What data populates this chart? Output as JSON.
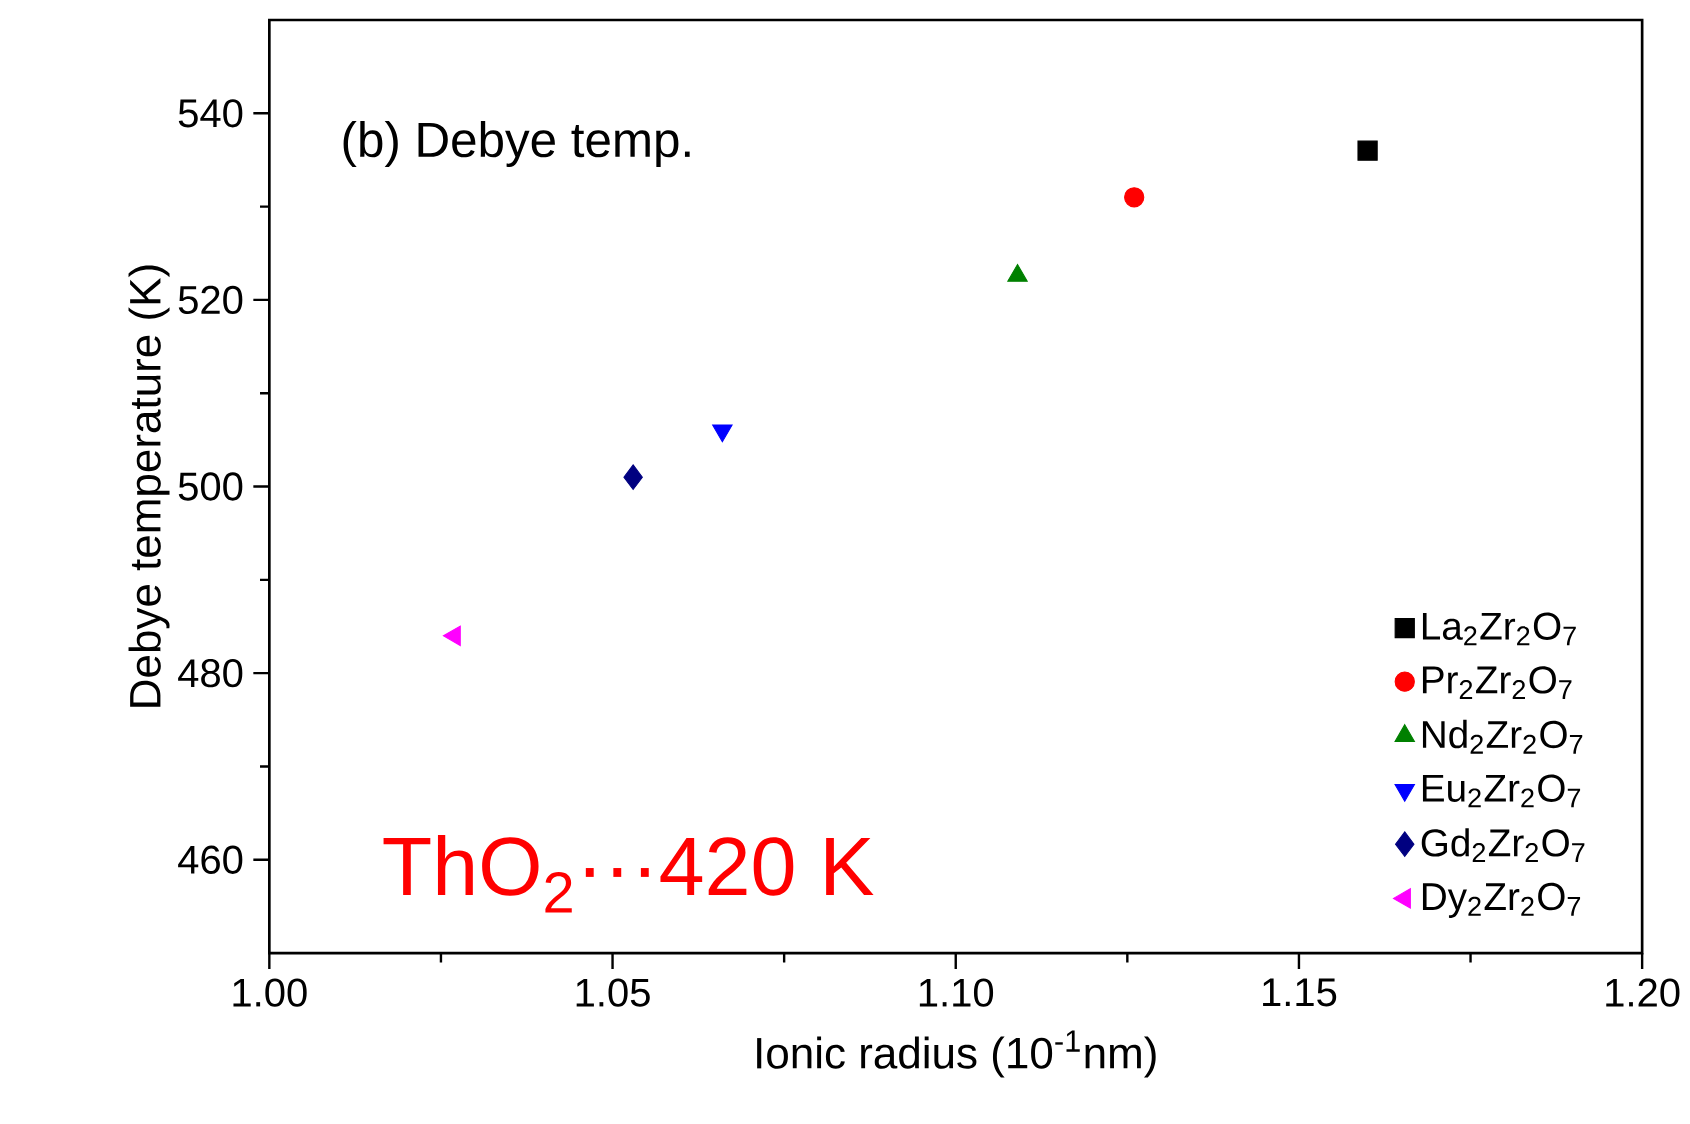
{
  "chart_data": {
    "type": "scatter",
    "title": "(b) Debye temp.",
    "xlabel": "Ionic radius (10$^{-1}$nm)",
    "ylabel": "Debye temperature (K)",
    "annotations": [
      "ThO$_{2}$···420 K"
    ],
    "xlim": [
      1.0,
      1.2
    ],
    "ylim": [
      450,
      550
    ],
    "xticks": [
      {
        "value": 1.0,
        "label": "1.00"
      },
      {
        "value": 1.05,
        "label": "1.05"
      },
      {
        "value": 1.1,
        "label": "1.10"
      },
      {
        "value": 1.15,
        "label": "1.15"
      },
      {
        "value": 1.2,
        "label": "1.20"
      }
    ],
    "yticks": [
      460,
      480,
      500,
      520,
      540
    ],
    "legend": "bottom right",
    "grid": false,
    "series": [
      {
        "name": "La$_{2}$Zr$_{2}$O$_{7}$",
        "color": "#000000",
        "marker": "square",
        "x": [
          1.16
        ],
        "values": [
          536
        ]
      },
      {
        "name": "Pr$_{2}$Zr$_{2}$O$_{7}$",
        "color": "#ff0000",
        "marker": "circle",
        "x": [
          1.126
        ],
        "values": [
          531
        ]
      },
      {
        "name": "Nd$_{2}$Zr$_{2}$O$_{7}$",
        "color": "#008000",
        "marker": "triangle",
        "x": [
          1.109
        ],
        "values": [
          522.6
        ]
      },
      {
        "name": "Eu$_{2}$Zr$_{2}$O$_{7}$",
        "color": "#0000ff",
        "marker": "triangle-down",
        "x": [
          1.066
        ],
        "values": [
          506
        ]
      },
      {
        "name": "Gd$_{2}$Zr$_{2}$O$_{7}$",
        "color": "#000080",
        "marker": "diamond",
        "x": [
          1.053
        ],
        "values": [
          501
        ]
      },
      {
        "name": "Dy$_{2}$Zr$_{2}$O$_{7}$",
        "color": "#ff00ff",
        "marker": "triangle-left",
        "x": [
          1.027
        ],
        "values": [
          484
        ]
      }
    ]
  }
}
